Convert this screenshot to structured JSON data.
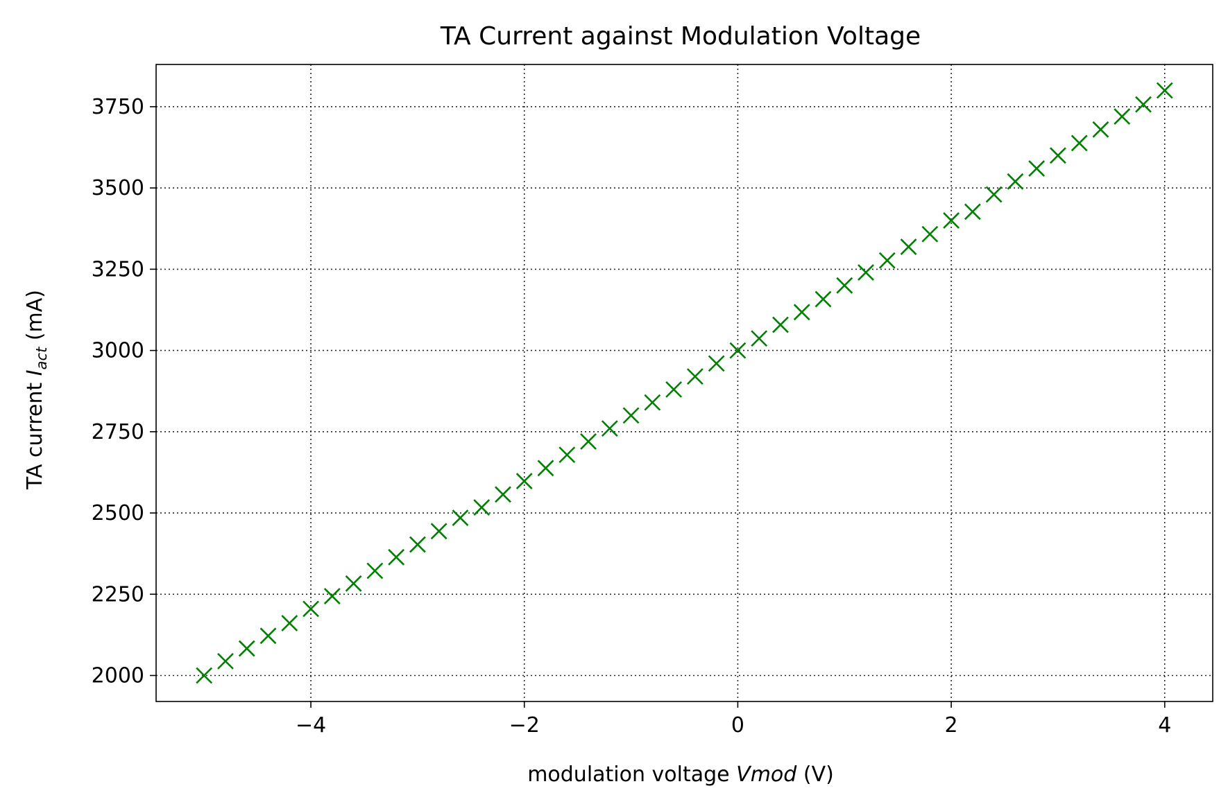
{
  "chart_data": {
    "type": "scatter",
    "title": "TA Current against Modulation Voltage",
    "xlabel_prefix": "modulation voltage ",
    "xlabel_var": "Vmod",
    "xlabel_suffix": " (V)",
    "ylabel_prefix": "TA current ",
    "ylabel_var": "I",
    "ylabel_sub": "act",
    "ylabel_suffix": " (mA)",
    "xlim": [
      -5.45,
      4.45
    ],
    "ylim": [
      1920,
      3880
    ],
    "xticks": [
      -4,
      -2,
      0,
      2,
      4
    ],
    "xtick_labels": [
      "−4",
      "−2",
      "0",
      "2",
      "4"
    ],
    "yticks": [
      2000,
      2250,
      2500,
      2750,
      3000,
      3250,
      3500,
      3750
    ],
    "ytick_labels": [
      "2000",
      "2250",
      "2500",
      "2750",
      "3000",
      "3250",
      "3500",
      "3750"
    ],
    "grid": true,
    "marker": "x",
    "colors": {
      "series": "#008000"
    },
    "series": [
      {
        "x": [
          -5.0,
          -4.8,
          -4.6,
          -4.4,
          -4.2,
          -4.0,
          -3.8,
          -3.6,
          -3.4,
          -3.2,
          -3.0,
          -2.8,
          -2.6,
          -2.4,
          -2.2,
          -2.0,
          -1.8,
          -1.6,
          -1.4,
          -1.2,
          -1.0,
          -0.8,
          -0.6,
          -0.4,
          -0.2,
          0.0,
          0.2,
          0.4,
          0.6,
          0.8,
          1.0,
          1.2,
          1.4,
          1.6,
          1.8,
          2.0,
          2.2,
          2.4,
          2.6,
          2.8,
          3.0,
          3.2,
          3.4,
          3.6,
          3.8,
          4.0
        ],
        "y": [
          2000,
          2044,
          2083,
          2122,
          2161,
          2205,
          2244,
          2283,
          2322,
          2364,
          2403,
          2444,
          2485,
          2517,
          2557,
          2598,
          2638,
          2679,
          2720,
          2760,
          2800,
          2840,
          2880,
          2920,
          2960,
          3000,
          3037,
          3079,
          3118,
          3158,
          3200,
          3240,
          3277,
          3319,
          3358,
          3400,
          3427,
          3480,
          3520,
          3560,
          3600,
          3638,
          3680,
          3720,
          3757,
          3800
        ]
      }
    ]
  }
}
